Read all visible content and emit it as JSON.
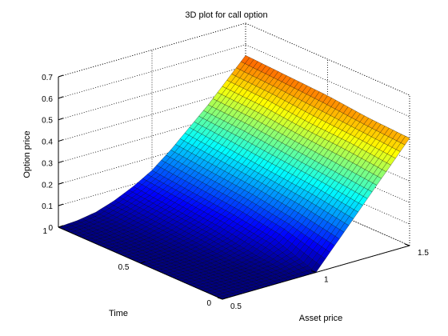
{
  "chart_data": {
    "type": "surface",
    "title": "3D plot for call option",
    "xlabel": "Asset price",
    "ylabel": "Time",
    "zlabel": "Option price",
    "xlim": [
      0.5,
      1.5
    ],
    "ylim": [
      0,
      1
    ],
    "zlim": [
      0,
      0.7
    ],
    "x_ticks": [
      "0.5",
      "1",
      "1.5"
    ],
    "y_ticks": [
      "0",
      "0.5",
      "1"
    ],
    "z_ticks": [
      "0",
      "0.1",
      "0.2",
      "0.3",
      "0.4",
      "0.5",
      "0.6",
      "0.7"
    ],
    "grid": true,
    "colormap": "jet",
    "strike": 1.0,
    "surface_rows": [
      {
        "time": 0.0,
        "asset_price": [
          0.5,
          0.6,
          0.7,
          0.8,
          0.9,
          1.0,
          1.1,
          1.2,
          1.3,
          1.4,
          1.5
        ],
        "option_price": [
          0.0,
          0.0,
          0.0,
          0.0,
          0.0,
          0.0,
          0.1,
          0.2,
          0.3,
          0.4,
          0.5
        ]
      },
      {
        "time": 0.25,
        "asset_price": [
          0.5,
          0.6,
          0.7,
          0.8,
          0.9,
          1.0,
          1.1,
          1.2,
          1.3,
          1.4,
          1.5
        ],
        "option_price": [
          0.0,
          0.0,
          0.0,
          0.003,
          0.02,
          0.07,
          0.14,
          0.23,
          0.32,
          0.42,
          0.51
        ]
      },
      {
        "time": 0.5,
        "asset_price": [
          0.5,
          0.6,
          0.7,
          0.8,
          0.9,
          1.0,
          1.1,
          1.2,
          1.3,
          1.4,
          1.5
        ],
        "option_price": [
          0.0,
          0.0,
          0.005,
          0.02,
          0.05,
          0.1,
          0.17,
          0.25,
          0.34,
          0.43,
          0.53
        ]
      },
      {
        "time": 0.75,
        "asset_price": [
          0.5,
          0.6,
          0.7,
          0.8,
          0.9,
          1.0,
          1.1,
          1.2,
          1.3,
          1.4,
          1.5
        ],
        "option_price": [
          0.0,
          0.003,
          0.012,
          0.035,
          0.07,
          0.12,
          0.19,
          0.27,
          0.36,
          0.45,
          0.54
        ]
      },
      {
        "time": 1.0,
        "asset_price": [
          0.5,
          0.6,
          0.7,
          0.8,
          0.9,
          1.0,
          1.1,
          1.2,
          1.3,
          1.4,
          1.5
        ],
        "option_price": [
          0.0,
          0.006,
          0.02,
          0.05,
          0.09,
          0.14,
          0.21,
          0.29,
          0.37,
          0.46,
          0.55
        ]
      }
    ]
  }
}
